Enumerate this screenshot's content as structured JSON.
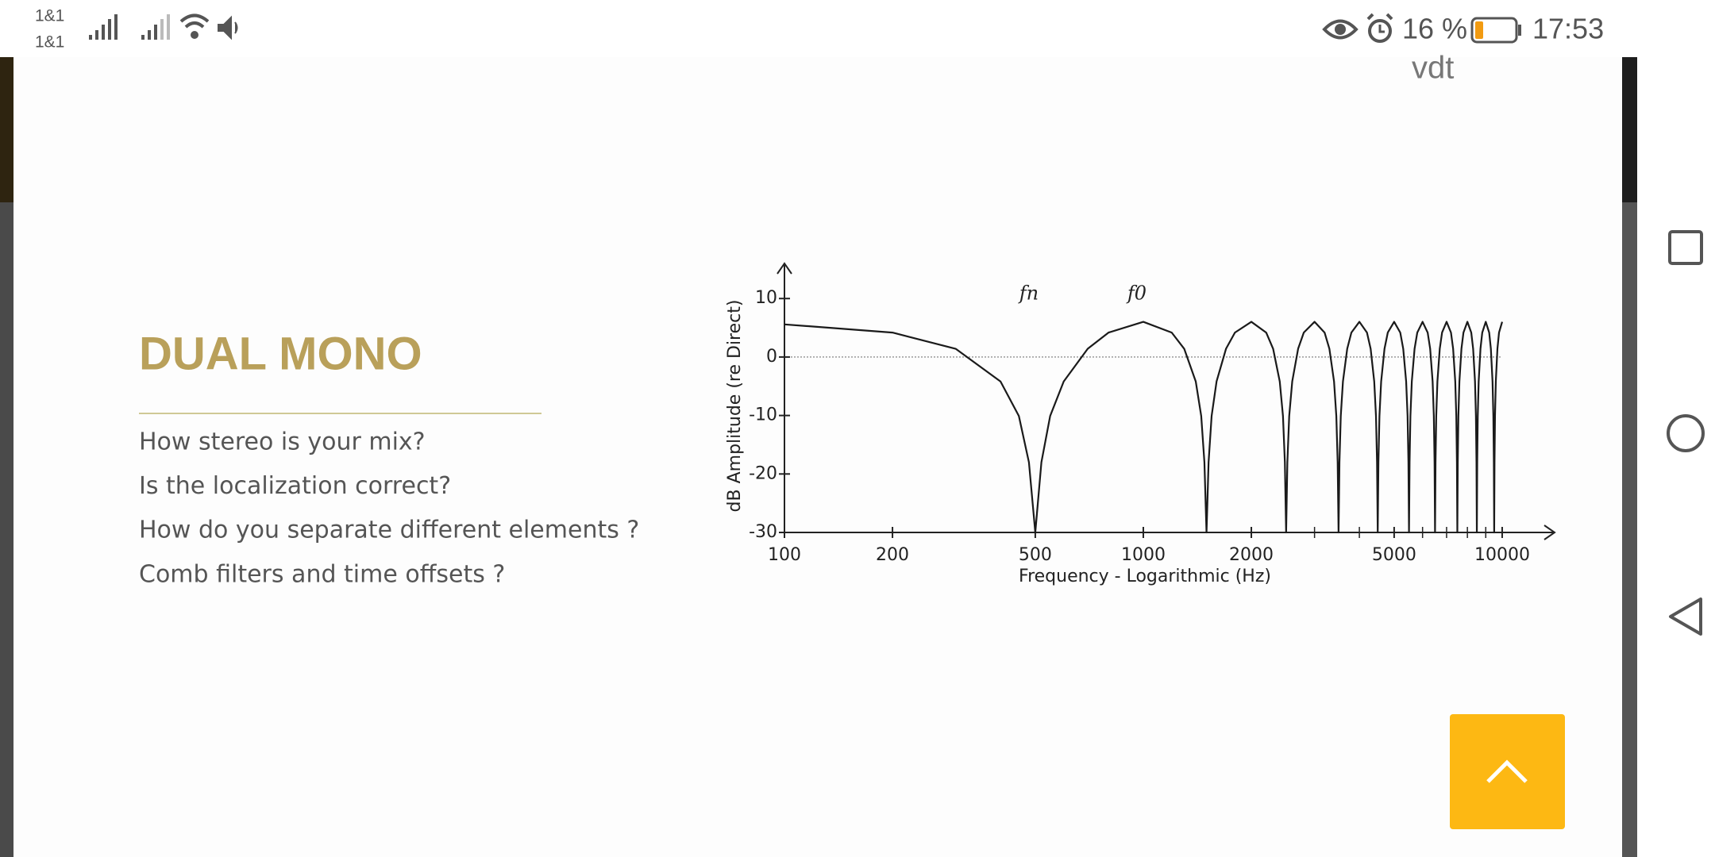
{
  "status_bar": {
    "carrier_1": "1&1",
    "carrier_2": "1&1",
    "battery": "16 %",
    "time": "17:53"
  },
  "header": {
    "logo": "vdt"
  },
  "slide": {
    "title": "DUAL MONO",
    "bullets": [
      "How stereo is your mix?",
      "Is the localization correct?",
      "How do you separate different elements ?",
      "Comb filters and time offsets ?"
    ]
  },
  "chart_data": {
    "type": "line",
    "x_label": "Frequency - Logarithmic (Hz)",
    "y_label": "dB Amplitude (re Direct)",
    "x_scale": "log",
    "xlim": [
      100,
      14000
    ],
    "xticks": [
      100,
      200,
      500,
      1000,
      2000,
      5000,
      10000
    ],
    "xminor_ticks": [
      3000,
      4000,
      6000,
      7000,
      8000,
      9000
    ],
    "ylim": [
      -30,
      16
    ],
    "yticks": [
      10,
      0,
      -10,
      -20,
      -30
    ],
    "hline": 0,
    "annotations": [
      {
        "label": "fn",
        "x": 500
      },
      {
        "label": "f0",
        "x": 1000
      }
    ],
    "x": [
      100,
      200,
      300,
      400,
      450,
      480,
      500,
      520,
      550,
      600,
      700,
      800,
      1000,
      1200,
      1300,
      1400,
      1450,
      1480,
      1500,
      1520,
      1550,
      1600,
      1700,
      1800,
      2000,
      2200,
      2300,
      2400,
      2450,
      2480,
      2500,
      2520,
      2550,
      2600,
      2700,
      2800,
      3000,
      3200,
      3300,
      3400,
      3450,
      3480,
      3500,
      3520,
      3550,
      3600,
      3700,
      3800,
      4000,
      4200,
      4300,
      4400,
      4450,
      4480,
      4500,
      4520,
      4550,
      4600,
      4700,
      4800,
      5000,
      5200,
      5300,
      5400,
      5450,
      5480,
      5500,
      5520,
      5550,
      5600,
      5700,
      5800,
      6000,
      6200,
      6300,
      6400,
      6450,
      6480,
      6500,
      6520,
      6550,
      6600,
      6700,
      6800,
      7000,
      7200,
      7300,
      7400,
      7450,
      7480,
      7500,
      7520,
      7550,
      7600,
      7700,
      7800,
      8000,
      8200,
      8300,
      8400,
      8450,
      8480,
      8500,
      8520,
      8550,
      8600,
      8700,
      8800,
      9000,
      9200,
      9300,
      9400,
      9450,
      9480,
      9500,
      9520,
      9550,
      9600,
      9700,
      9800,
      10000
    ],
    "series": [
      {
        "color": "#1a1a1a",
        "values": [
          5.58,
          4.18,
          1.41,
          -4.18,
          -10.09,
          -18,
          -30,
          -18,
          -10.09,
          -4.18,
          1.41,
          4.18,
          6.02,
          4.18,
          1.41,
          -4.18,
          -10.09,
          -18,
          -30,
          -18,
          -10.09,
          -4.18,
          1.41,
          4.18,
          6.02,
          4.18,
          1.41,
          -4.18,
          -10.09,
          -18,
          -30,
          -18,
          -10.09,
          -4.18,
          1.41,
          4.18,
          6.02,
          4.18,
          1.41,
          -4.18,
          -10.09,
          -18,
          -30,
          -18,
          -10.09,
          -4.18,
          1.41,
          4.18,
          6.02,
          4.18,
          1.41,
          -4.18,
          -10.09,
          -18,
          -30,
          -18,
          -10.09,
          -4.18,
          1.41,
          4.18,
          6.02,
          4.18,
          1.41,
          -4.18,
          -10.09,
          -18,
          -30,
          -18,
          -10.09,
          -4.18,
          1.41,
          4.18,
          6.02,
          4.18,
          1.41,
          -4.18,
          -10.09,
          -18,
          -30,
          -18,
          -10.09,
          -4.18,
          1.41,
          4.18,
          6.02,
          4.18,
          1.41,
          -4.18,
          -10.09,
          -18,
          -30,
          -18,
          -10.09,
          -4.18,
          1.41,
          4.18,
          6.02,
          4.18,
          1.41,
          -4.18,
          -10.09,
          -18,
          -30,
          -18,
          -10.09,
          -4.18,
          1.41,
          4.18,
          6.02,
          4.18,
          1.41,
          -4.18,
          -10.09,
          -18,
          -30,
          -18,
          -10.09,
          -4.18,
          1.41,
          4.18,
          6.02
        ]
      }
    ]
  }
}
